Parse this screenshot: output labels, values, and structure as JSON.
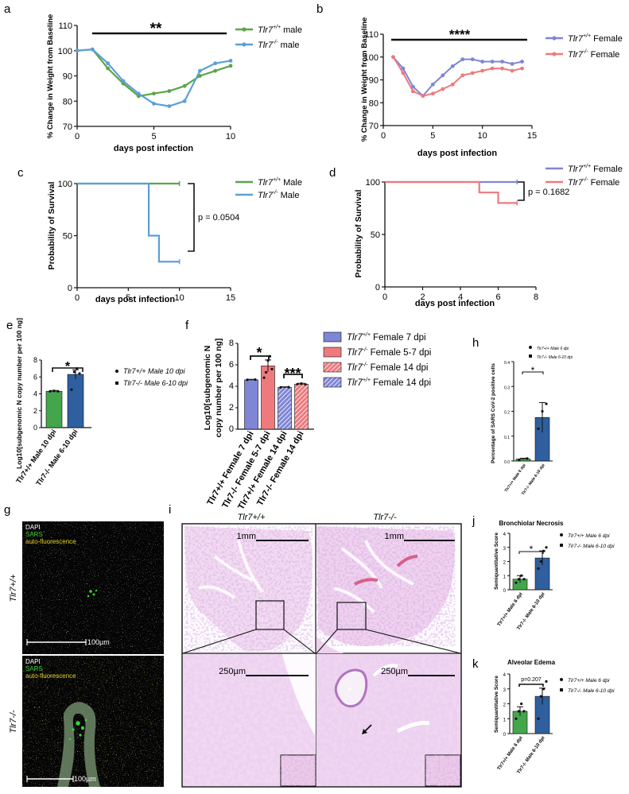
{
  "colors": {
    "green": "#5aa646",
    "blue": "#5c9fd6",
    "purple": "#7f86d6",
    "red": "#ee7a7e",
    "darkblue": "#2f5f9e",
    "black": "#111111"
  },
  "chart_data": [
    {
      "panel": "a",
      "type": "line",
      "significance": "**",
      "xlabel": "days post infection",
      "ylabel": "% Change in Weight from Baseline",
      "xlim": [
        0,
        10
      ],
      "ylim": [
        70,
        110
      ],
      "xticks": [
        "0",
        "5",
        "10"
      ],
      "yticks": [
        "70",
        "80",
        "90",
        "100",
        "110"
      ],
      "series": [
        {
          "name_main": "Tlr7",
          "name_sup": "+/+",
          "name_rest": " male",
          "color": "#5aa646",
          "x": [
            0,
            1,
            2,
            3,
            4,
            5,
            6,
            7,
            8,
            9,
            10
          ],
          "values": [
            100,
            100.5,
            93,
            87,
            82,
            83,
            84,
            86,
            90,
            92,
            94
          ]
        },
        {
          "name_main": "Tlr7",
          "name_sup": "-/-",
          "name_rest": " male",
          "color": "#5c9fd6",
          "x": [
            0,
            1,
            2,
            3,
            4,
            5,
            6,
            7,
            8,
            9,
            10
          ],
          "values": [
            100,
            100.5,
            95,
            88,
            83,
            79,
            78,
            80,
            92,
            95,
            96
          ]
        }
      ]
    },
    {
      "panel": "b",
      "type": "line",
      "significance": "****",
      "xlabel": "days post infection",
      "ylabel": "% Change in Weight from Baseline",
      "xlim": [
        0,
        15
      ],
      "ylim": [
        70,
        110
      ],
      "xticks": [
        "0",
        "5",
        "10",
        "15"
      ],
      "yticks": [
        "70",
        "80",
        "90",
        "100",
        "110"
      ],
      "series": [
        {
          "name_main": "Tlr7",
          "name_sup": "+/+",
          "name_rest": " Female",
          "color": "#7f86d6",
          "x": [
            1,
            2,
            3,
            4,
            5,
            6,
            7,
            8,
            9,
            10,
            11,
            12,
            13,
            14
          ],
          "values": [
            100,
            95,
            87,
            83,
            88,
            92,
            96,
            99,
            99,
            98,
            98,
            98,
            97,
            98
          ]
        },
        {
          "name_main": "Tlr7",
          "name_sup": "-/-",
          "name_rest": " Female",
          "color": "#ee7a7e",
          "x": [
            1,
            2,
            3,
            4,
            5,
            6,
            7,
            8,
            9,
            10,
            11,
            12,
            13,
            14
          ],
          "values": [
            100,
            93,
            85,
            83,
            84,
            86,
            88,
            92,
            93,
            94,
            95,
            95,
            94,
            95
          ]
        }
      ]
    },
    {
      "panel": "c",
      "type": "line",
      "xlabel": "days post infection",
      "ylabel": "Probability of Survival",
      "xlim": [
        0,
        15
      ],
      "ylim": [
        0,
        100
      ],
      "xticks": [
        "0",
        "5",
        "10",
        "15"
      ],
      "yticks": [
        "0",
        "50",
        "100"
      ],
      "pvalue": "p = 0.0504",
      "series": [
        {
          "name_main": "Tlr7",
          "name_sup": "+/+",
          "name_rest": " Male",
          "color": "#5aa646",
          "x": [
            0,
            10
          ],
          "values": [
            100,
            100
          ]
        },
        {
          "name_main": "Tlr7",
          "name_sup": "-/-",
          "name_rest": " Male",
          "color": "#5c9fd6",
          "x": [
            0,
            7,
            7,
            8,
            8,
            10
          ],
          "values": [
            100,
            100,
            50,
            50,
            25,
            25
          ]
        }
      ]
    },
    {
      "panel": "d",
      "type": "line",
      "xlabel": "days post infection",
      "ylabel": "Probability of Survival",
      "xlim": [
        0,
        8
      ],
      "ylim": [
        0,
        100
      ],
      "xticks": [
        "0",
        "2",
        "4",
        "6",
        "8"
      ],
      "yticks": [
        "0",
        "50",
        "100"
      ],
      "pvalue": "p = 0.1682",
      "series": [
        {
          "name_main": "Tlr7",
          "name_sup": "+/+",
          "name_rest": " Female",
          "color": "#7f86d6",
          "x": [
            0,
            7
          ],
          "values": [
            100,
            100
          ]
        },
        {
          "name_main": "Tlr7",
          "name_sup": "-/-",
          "name_rest": " Female",
          "color": "#ee7a7e",
          "x": [
            0,
            5,
            5,
            6,
            6,
            7
          ],
          "values": [
            100,
            100,
            90,
            90,
            80,
            80
          ]
        }
      ]
    },
    {
      "panel": "e",
      "type": "bar",
      "significance": "*",
      "ylabel": "Log10[subgenomic N copy number per 100 ng]",
      "ylim": [
        0,
        8
      ],
      "yticks": [
        "0",
        "2",
        "4",
        "6",
        "8"
      ],
      "categories": [
        "Tlr7+/+ Male 10 dpi",
        "Tlr7-/- Male 6-10 dpi"
      ],
      "values": [
        4.3,
        6.3
      ],
      "legend": [
        "Tlr7+/+ Male 10 dpi",
        "Tlr7-/- Male 6-10 dpi"
      ]
    },
    {
      "panel": "f",
      "type": "bar",
      "significance": [
        "*",
        "***"
      ],
      "ylabel_line1": "Log10[subgenomic N",
      "ylabel_line2": "copy number per 100 ng]",
      "ylim": [
        0,
        8
      ],
      "yticks": [
        "0",
        "2",
        "4",
        "6",
        "8"
      ],
      "categories": [
        "Tlr7+/+ Female 7 dpi",
        "Tlr7-/- Female 5-7 dpi",
        "Tlr7+/+ Female 14 dpi",
        "Tlr7-/- Female 14 dpi"
      ],
      "values": [
        4.6,
        5.9,
        3.9,
        4.2
      ],
      "legend": [
        {
          "main": "Tlr7",
          "sup": "+/+",
          "rest": " Female 7 dpi"
        },
        {
          "main": "Tlr7",
          "sup": "-/-",
          "rest": " Female 5-7 dpi"
        },
        {
          "main": "Tlr7",
          "sup": "-/-",
          "rest": " Female 14 dpi"
        },
        {
          "main": "Tlr7",
          "sup": "+/+",
          "rest": " Female 14 dpi"
        }
      ]
    },
    {
      "panel": "h",
      "type": "bar",
      "significance": "*",
      "ylabel": "Percentage of SARS CoV-2 positive cells",
      "ylim": [
        0,
        0.4
      ],
      "yticks": [
        "0.0",
        "0.1",
        "0.2",
        "0.3",
        "0.4"
      ],
      "categories": [
        "Tlr7+/+ Male 6 dpi",
        "Tlr7-/- Male 6-10 dpi"
      ],
      "values": [
        0.008,
        0.175
      ],
      "legend": [
        "Tlr7+/+ Male 6 dpi",
        "Tlr7-/- Male 6-10 dpi"
      ]
    },
    {
      "panel": "j",
      "type": "bar",
      "title": "Bronchiolar Necrosis",
      "significance": "*",
      "ylabel": "Semiquantitative Score",
      "ylim": [
        0,
        4
      ],
      "yticks": [
        "0",
        "1",
        "2",
        "3",
        "4"
      ],
      "categories": [
        "Tlr7+/+ Male 6 dpi",
        "Tlr7-/- Male 6-10 dpi"
      ],
      "values": [
        0.75,
        2.25
      ],
      "legend": [
        "Tlr7+/+ Male 6 dpi",
        "Tlr7-/- Male 6-10 dpi"
      ]
    },
    {
      "panel": "k",
      "type": "bar",
      "title": "Alveolar Edema",
      "significance": "p=0.207",
      "ylabel": "Semiquantitative Score",
      "ylim": [
        0,
        4
      ],
      "yticks": [
        "0",
        "1",
        "2",
        "3",
        "4"
      ],
      "categories": [
        "Tlr7+/+ Male 6 dpi",
        "Tlr7-/- Male 6-10 dpi"
      ],
      "values": [
        1.5,
        2.5
      ],
      "legend": [
        "Tlr7+/+ Male 6 dpi",
        "Tlr7-/- Male 6-10 dpi"
      ]
    }
  ],
  "panel_g": {
    "top_labels": [
      "DAPI",
      "SARS",
      "auto-fluorescence"
    ],
    "bottom_labels": [
      "DAPI",
      "SARS",
      "auto-fluorescence"
    ],
    "scale_top": "100µm",
    "scale_bottom": "100µm",
    "row_label_top": "Tlr7+/+",
    "row_label_bottom": "Tlr7-/-"
  },
  "panel_i": {
    "col_label_left": "Tlr7+/+",
    "col_label_right": "Tlr7-/-",
    "scale_top": "1mm",
    "scale_bottom": "250µm"
  },
  "letters": [
    "a",
    "b",
    "c",
    "d",
    "e",
    "f",
    "g",
    "h",
    "i",
    "j",
    "k"
  ]
}
